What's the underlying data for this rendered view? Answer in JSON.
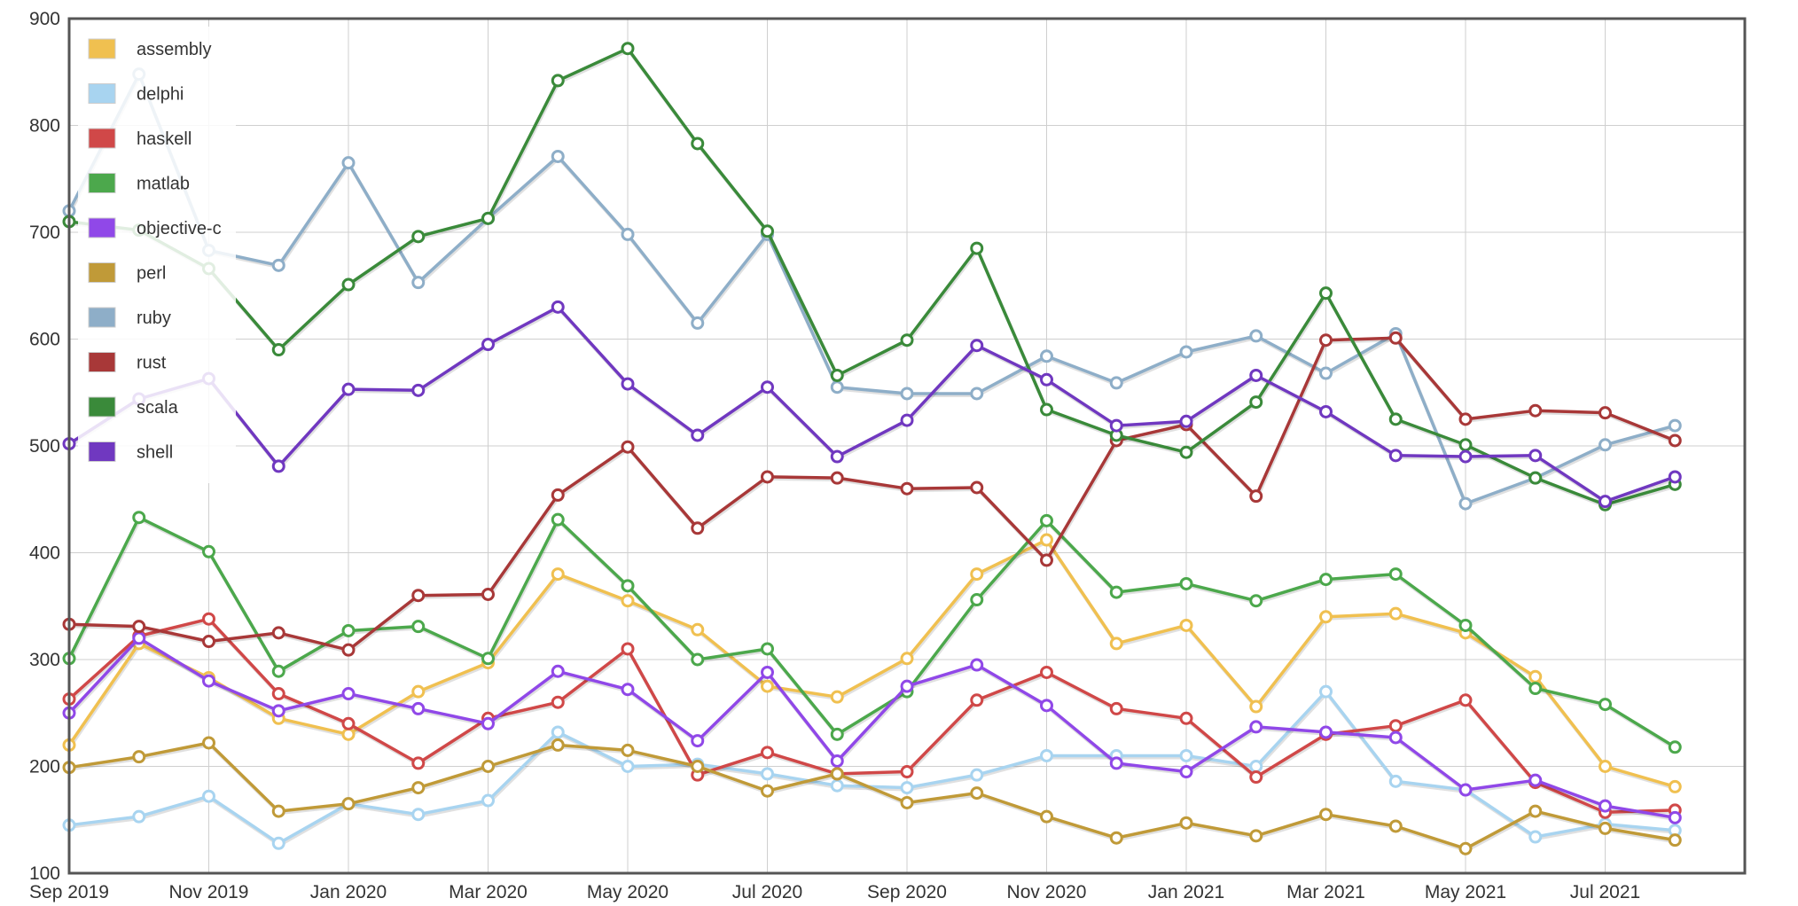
{
  "chart_data": {
    "type": "line",
    "title": "",
    "xlabel": "",
    "ylabel": "",
    "ylim": [
      100,
      900
    ],
    "yticks": [
      100,
      200,
      300,
      400,
      500,
      600,
      700,
      800,
      900
    ],
    "grid": true,
    "legend_position": "top-left",
    "x": [
      "2019-09",
      "2019-10",
      "2019-11",
      "2019-12",
      "2020-01",
      "2020-02",
      "2020-03",
      "2020-04",
      "2020-05",
      "2020-06",
      "2020-07",
      "2020-08",
      "2020-09",
      "2020-10",
      "2020-11",
      "2020-12",
      "2021-01",
      "2021-02",
      "2021-03",
      "2021-04",
      "2021-05",
      "2021-06",
      "2021-07",
      "2021-08"
    ],
    "xtick_labels": [
      "Sep 2019",
      "",
      "Nov 2019",
      "",
      "Jan 2020",
      "",
      "Mar 2020",
      "",
      "May 2020",
      "",
      "Jul 2020",
      "",
      "Sep 2020",
      "",
      "Nov 2020",
      "",
      "Jan 2021",
      "",
      "Mar 2021",
      "",
      "May 2021",
      "",
      "Jul 2021",
      ""
    ],
    "series": [
      {
        "name": "assembly",
        "color": "#f0c050",
        "values": [
          220,
          315,
          283,
          245,
          230,
          270,
          297,
          380,
          355,
          328,
          275,
          265,
          301,
          380,
          412,
          315,
          332,
          256,
          340,
          343,
          325,
          284,
          200,
          181
        ]
      },
      {
        "name": "delphi",
        "color": "#a8d4f0",
        "values": [
          145,
          153,
          172,
          128,
          165,
          155,
          168,
          232,
          200,
          202,
          193,
          182,
          180,
          192,
          210,
          210,
          210,
          200,
          270,
          186,
          178,
          134,
          146,
          140
        ]
      },
      {
        "name": "haskell",
        "color": "#d04848",
        "values": [
          263,
          322,
          338,
          268,
          240,
          203,
          245,
          260,
          310,
          192,
          213,
          193,
          195,
          262,
          288,
          254,
          245,
          190,
          230,
          238,
          262,
          185,
          157,
          159
        ]
      },
      {
        "name": "matlab",
        "color": "#4ca84c",
        "values": [
          301,
          433,
          401,
          289,
          327,
          331,
          301,
          431,
          369,
          300,
          310,
          230,
          270,
          356,
          430,
          363,
          371,
          355,
          375,
          380,
          332,
          273,
          258,
          218
        ]
      },
      {
        "name": "objective-c",
        "color": "#9048e8",
        "values": [
          250,
          320,
          280,
          252,
          268,
          254,
          240,
          289,
          272,
          224,
          288,
          205,
          275,
          295,
          257,
          203,
          195,
          237,
          232,
          227,
          178,
          187,
          163,
          152
        ]
      },
      {
        "name": "perl",
        "color": "#c09a38",
        "values": [
          199,
          209,
          222,
          158,
          165,
          180,
          200,
          220,
          215,
          200,
          177,
          193,
          166,
          175,
          153,
          133,
          147,
          135,
          155,
          144,
          123,
          158,
          142,
          131
        ]
      },
      {
        "name": "ruby",
        "color": "#8eaec8",
        "values": [
          720,
          848,
          683,
          669,
          765,
          653,
          713,
          771,
          698,
          615,
          698,
          555,
          549,
          549,
          584,
          559,
          588,
          603,
          568,
          605,
          446,
          470,
          501,
          519
        ]
      },
      {
        "name": "rust",
        "color": "#a83838",
        "values": [
          333,
          331,
          317,
          325,
          309,
          360,
          361,
          454,
          499,
          423,
          471,
          470,
          460,
          461,
          393,
          505,
          520,
          453,
          599,
          601,
          525,
          533,
          531,
          505
        ]
      },
      {
        "name": "scala",
        "color": "#3a8a3a",
        "values": [
          710,
          702,
          666,
          590,
          651,
          696,
          713,
          842,
          872,
          783,
          701,
          566,
          599,
          685,
          534,
          510,
          494,
          541,
          643,
          525,
          501,
          470,
          445,
          464
        ]
      },
      {
        "name": "shell",
        "color": "#7038c0",
        "values": [
          502,
          544,
          563,
          481,
          553,
          552,
          595,
          630,
          558,
          510,
          555,
          490,
          524,
          594,
          562,
          519,
          523,
          566,
          532,
          491,
          490,
          491,
          448,
          471
        ]
      }
    ]
  }
}
